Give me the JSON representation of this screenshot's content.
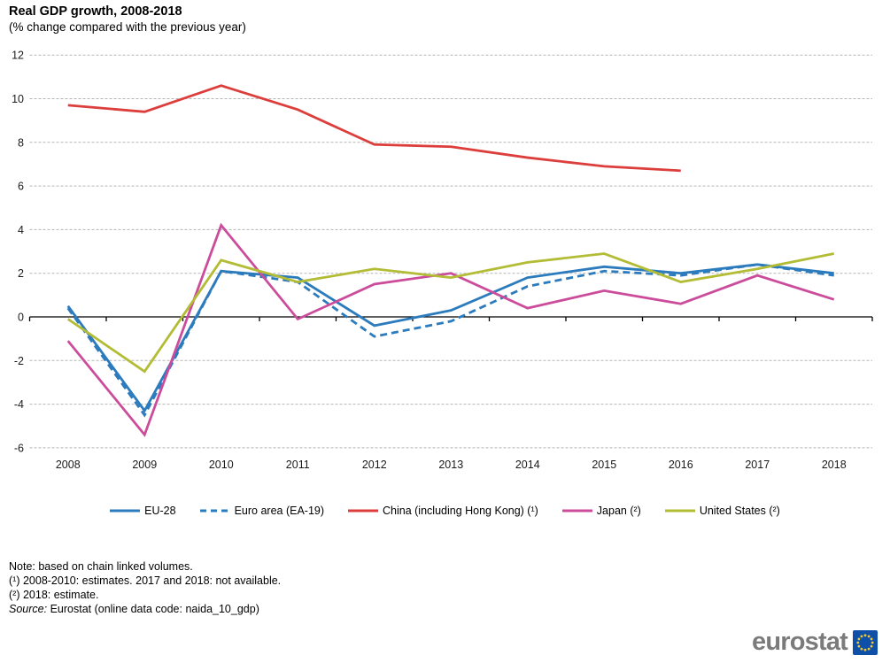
{
  "chart_data": {
    "type": "line",
    "title": "Real GDP growth, 2008-2018",
    "subtitle": "(% change compared with the previous year)",
    "x": [
      "2008",
      "2009",
      "2010",
      "2011",
      "2012",
      "2013",
      "2014",
      "2015",
      "2016",
      "2017",
      "2018"
    ],
    "ylim": [
      -6,
      12
    ],
    "ytick_step": 2,
    "grid": true,
    "legend_position": "bottom",
    "series": [
      {
        "name": "EU-28",
        "color": "#2C7BBD",
        "style": "solid",
        "values": [
          0.5,
          -4.3,
          2.1,
          1.8,
          -0.4,
          0.3,
          1.8,
          2.3,
          2.0,
          2.4,
          2.0
        ]
      },
      {
        "name": "Euro area (EA-19)",
        "color": "#2C7BBD",
        "style": "dashed",
        "values": [
          0.4,
          -4.5,
          2.1,
          1.6,
          -0.9,
          -0.2,
          1.4,
          2.1,
          1.9,
          2.4,
          1.9
        ]
      },
      {
        "name": "China (including Hong Kong) (¹)",
        "color": "#DC3E3C",
        "style": "solid",
        "values": [
          9.7,
          9.4,
          10.6,
          9.5,
          7.9,
          7.8,
          7.3,
          6.9,
          6.7,
          null,
          null
        ]
      },
      {
        "name": "Japan (²)",
        "color": "#CC4C9C",
        "style": "solid",
        "values": [
          -1.1,
          -5.4,
          4.2,
          -0.1,
          1.5,
          2.0,
          0.4,
          1.2,
          0.6,
          1.9,
          0.8
        ]
      },
      {
        "name": "United States (²)",
        "color": "#B3BC35",
        "style": "solid",
        "values": [
          -0.1,
          -2.5,
          2.6,
          1.6,
          2.2,
          1.8,
          2.5,
          2.9,
          1.6,
          2.2,
          2.9
        ]
      }
    ]
  },
  "notes": {
    "line1": "Note: based on chain linked volumes.",
    "line2": "(¹) 2008-2010: estimates. 2017 and 2018: not available.",
    "line3": "(²) 2018: estimate.",
    "source_label": "Source:",
    "source_text": " Eurostat (online data code: naida_10_gdp)"
  },
  "footer": {
    "logo_text": "eurostat"
  },
  "colors": {
    "gridline": "#b5b5b5",
    "axis": "#000000",
    "logo_gray": "#7b7b7b",
    "flag_blue": "#0E4FA8",
    "flag_stars": "#F2CA30"
  }
}
